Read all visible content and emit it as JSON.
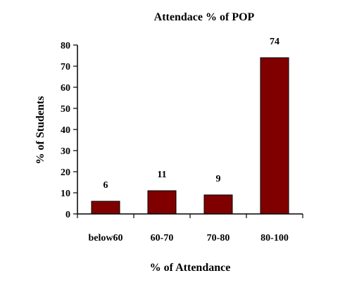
{
  "chart_data": {
    "type": "bar",
    "title": "Attendace % of POP",
    "xlabel": "% of Attendance",
    "ylabel": "% of Students",
    "categories": [
      "below60",
      "60-70",
      "70-80",
      "80-100"
    ],
    "values": [
      6,
      11,
      9,
      74
    ],
    "ylim": [
      0,
      80
    ],
    "yticks": [
      0,
      10,
      20,
      30,
      40,
      50,
      60,
      70,
      80
    ],
    "grid": false,
    "legend": "none",
    "bar_color": "#800000",
    "bar_edge_color": "#000000"
  }
}
